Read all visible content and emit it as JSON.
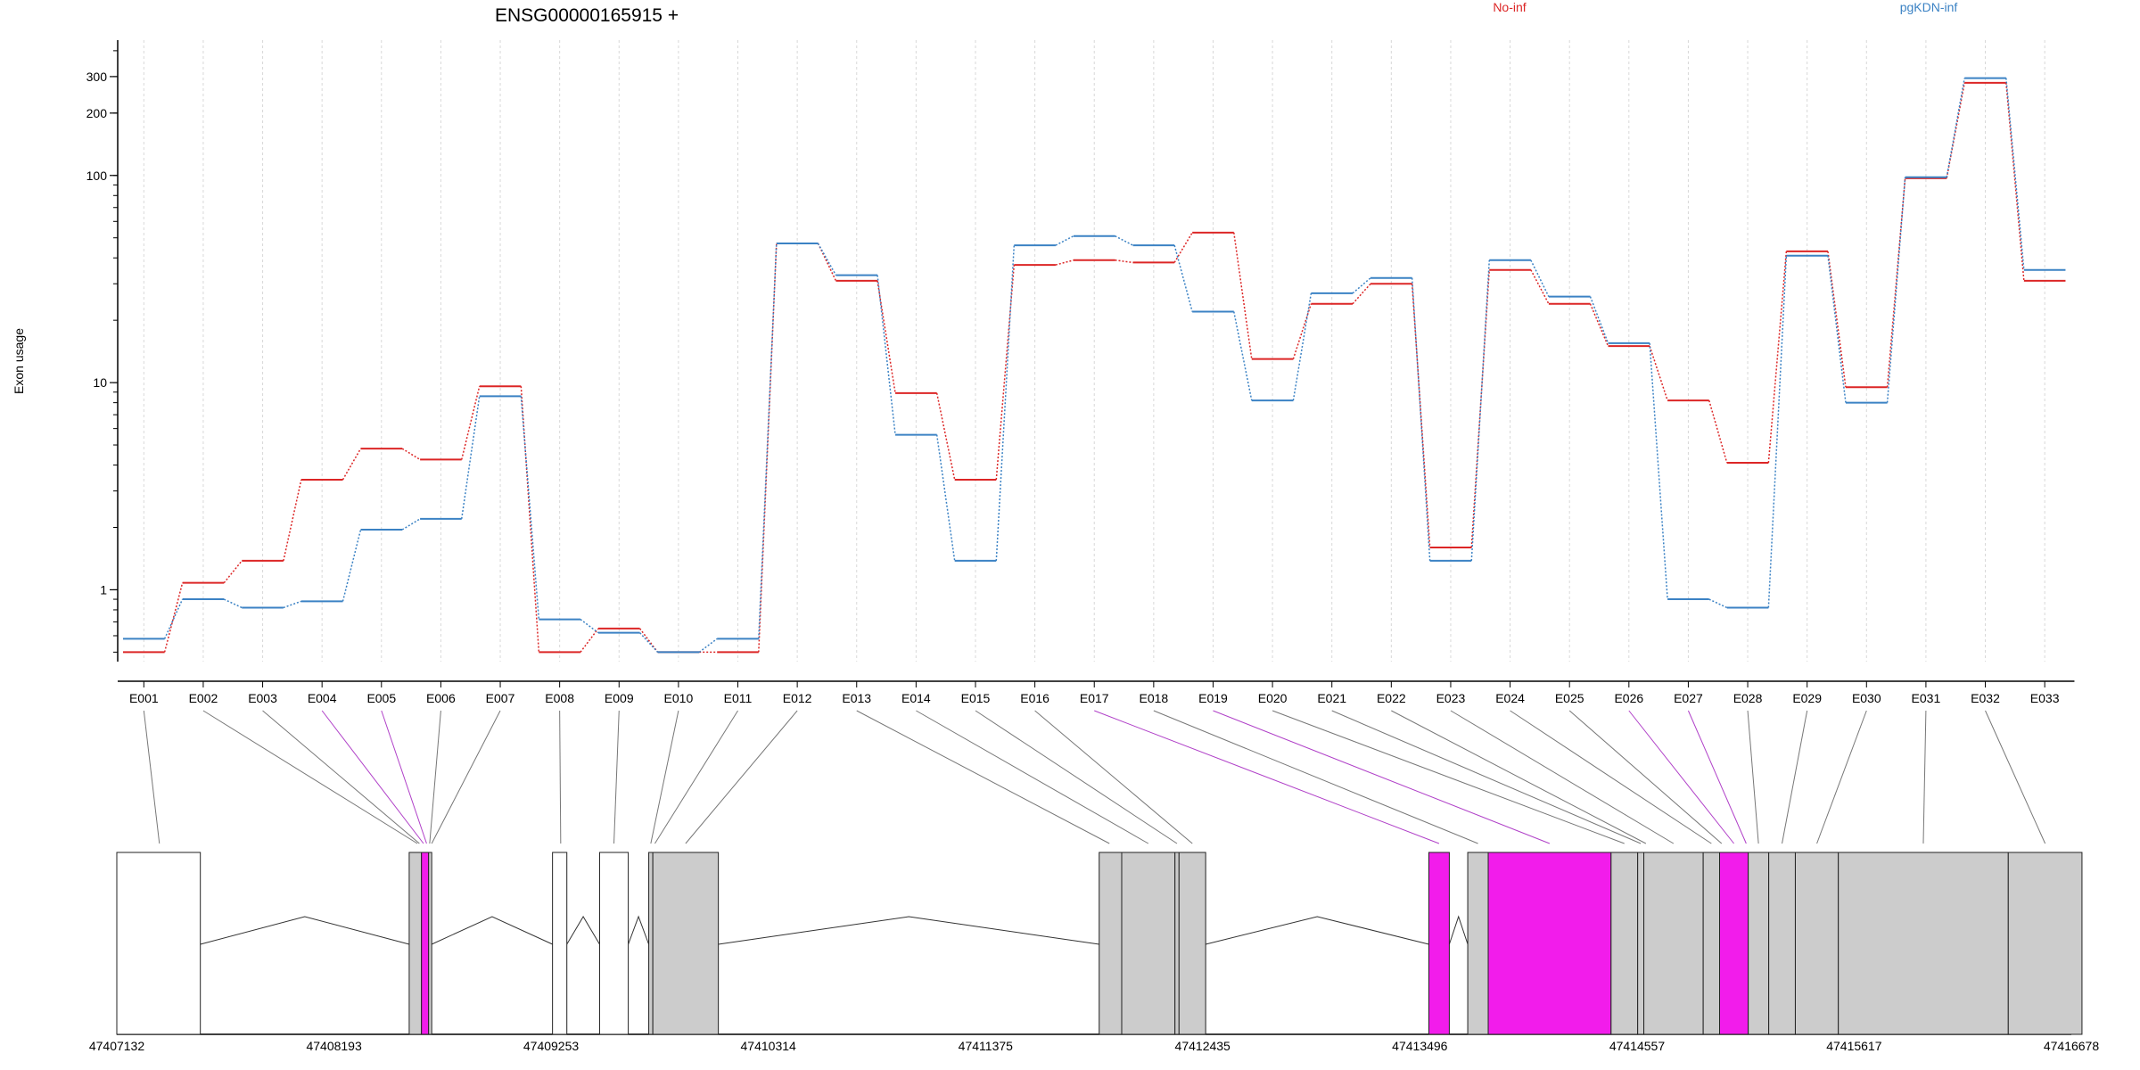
{
  "chart_data": {
    "type": "line",
    "title": "ENSG00000165915 +",
    "ylabel": "Exon usage",
    "y_scale": "log",
    "ylim": [
      0.45,
      450
    ],
    "y_ticks": [
      {
        "value": 1,
        "label": "1"
      },
      {
        "value": 10,
        "label": "10"
      },
      {
        "value": 100,
        "label": "100"
      },
      {
        "value": 200,
        "label": "200"
      },
      {
        "value": 300,
        "label": "300"
      }
    ],
    "categories": [
      "E001",
      "E002",
      "E003",
      "E004",
      "E005",
      "E006",
      "E007",
      "E008",
      "E009",
      "E010",
      "E011",
      "E012",
      "E013",
      "E014",
      "E015",
      "E016",
      "E017",
      "E018",
      "E019",
      "E020",
      "E021",
      "E022",
      "E023",
      "E024",
      "E025",
      "E026",
      "E027",
      "E028",
      "E029",
      "E030",
      "E031",
      "E032",
      "E033"
    ],
    "legend": {
      "placement": "top-right"
    },
    "grid": true,
    "series": [
      {
        "name": "No-inf",
        "color": "#dc2626",
        "values": [
          0.5,
          1.08,
          1.38,
          3.4,
          4.8,
          4.25,
          9.6,
          0.5,
          0.65,
          0.5,
          0.5,
          47,
          31,
          8.9,
          3.4,
          37,
          39,
          38,
          53,
          13,
          24,
          30,
          1.6,
          35,
          24,
          15,
          8.2,
          4.1,
          43,
          9.5,
          97,
          280,
          31
        ]
      },
      {
        "name": "pgKDN-inf",
        "color": "#3b82c4",
        "values": [
          0.58,
          0.9,
          0.82,
          0.88,
          1.95,
          2.2,
          8.6,
          0.72,
          0.62,
          0.5,
          0.58,
          47,
          33,
          5.6,
          1.38,
          46,
          51,
          46,
          22,
          8.2,
          27,
          32,
          1.38,
          39,
          26,
          15.5,
          0.9,
          0.82,
          41,
          8,
          98,
          295,
          35
        ]
      }
    ],
    "gene_model": {
      "x_ticks": [
        "47407132",
        "47408193",
        "47409253",
        "47410314",
        "47411375",
        "47412435",
        "47413496",
        "47414557",
        "47415617",
        "47416678"
      ],
      "highlight_color": "#f21ceb",
      "exon_color": "#cccccc",
      "exons": [
        {
          "start": 47407132,
          "end": 47407540,
          "fill": "white"
        },
        {
          "start": 47408560,
          "end": 47408620,
          "fill": "grey"
        },
        {
          "start": 47408620,
          "end": 47408655,
          "fill": "magenta"
        },
        {
          "start": 47408655,
          "end": 47408670,
          "fill": "grey"
        },
        {
          "start": 47409260,
          "end": 47409330,
          "fill": "white"
        },
        {
          "start": 47409490,
          "end": 47409630,
          "fill": "white"
        },
        {
          "start": 47409730,
          "end": 47409750,
          "fill": "grey"
        },
        {
          "start": 47409750,
          "end": 47410070,
          "fill": "grey"
        },
        {
          "start": 47411930,
          "end": 47412040,
          "fill": "grey"
        },
        {
          "start": 47412040,
          "end": 47412300,
          "fill": "grey"
        },
        {
          "start": 47412300,
          "end": 47412320,
          "fill": "grey"
        },
        {
          "start": 47412320,
          "end": 47412450,
          "fill": "grey"
        },
        {
          "start": 47413540,
          "end": 47413640,
          "fill": "magenta"
        },
        {
          "start": 47413730,
          "end": 47413830,
          "fill": "grey"
        },
        {
          "start": 47413830,
          "end": 47414430,
          "fill": "magenta"
        },
        {
          "start": 47414430,
          "end": 47414560,
          "fill": "grey"
        },
        {
          "start": 47414560,
          "end": 47414590,
          "fill": "grey"
        },
        {
          "start": 47414590,
          "end": 47414880,
          "fill": "grey"
        },
        {
          "start": 47414880,
          "end": 47414960,
          "fill": "grey"
        },
        {
          "start": 47414960,
          "end": 47415100,
          "fill": "magenta"
        },
        {
          "start": 47415100,
          "end": 47415200,
          "fill": "grey"
        },
        {
          "start": 47415200,
          "end": 47415330,
          "fill": "grey"
        },
        {
          "start": 47415330,
          "end": 47415540,
          "fill": "grey"
        },
        {
          "start": 47415540,
          "end": 47416370,
          "fill": "grey"
        },
        {
          "start": 47416370,
          "end": 47416730,
          "fill": "grey"
        }
      ],
      "exon_links": [
        {
          "x": 47407340,
          "color": "grey"
        },
        {
          "x": 47408600,
          "color": "grey"
        },
        {
          "x": 47408610,
          "color": "grey"
        },
        {
          "x": 47408630,
          "color": "magenta"
        },
        {
          "x": 47408645,
          "color": "magenta"
        },
        {
          "x": 47408660,
          "color": "grey"
        },
        {
          "x": 47408670,
          "color": "grey"
        },
        {
          "x": 47409300,
          "color": "grey"
        },
        {
          "x": 47409560,
          "color": "grey"
        },
        {
          "x": 47409740,
          "color": "grey"
        },
        {
          "x": 47409760,
          "color": "grey"
        },
        {
          "x": 47409910,
          "color": "grey"
        },
        {
          "x": 47411980,
          "color": "grey"
        },
        {
          "x": 47412170,
          "color": "grey"
        },
        {
          "x": 47412310,
          "color": "grey"
        },
        {
          "x": 47412385,
          "color": "grey"
        },
        {
          "x": 47413590,
          "color": "magenta"
        },
        {
          "x": 47413780,
          "color": "grey"
        },
        {
          "x": 47414130,
          "color": "magenta"
        },
        {
          "x": 47414495,
          "color": "grey"
        },
        {
          "x": 47414575,
          "color": "grey"
        },
        {
          "x": 47414600,
          "color": "grey"
        },
        {
          "x": 47414735,
          "color": "grey"
        },
        {
          "x": 47414920,
          "color": "grey"
        },
        {
          "x": 47414970,
          "color": "grey"
        },
        {
          "x": 47415030,
          "color": "magenta"
        },
        {
          "x": 47415090,
          "color": "magenta"
        },
        {
          "x": 47415150,
          "color": "grey"
        },
        {
          "x": 47415265,
          "color": "grey"
        },
        {
          "x": 47415435,
          "color": "grey"
        },
        {
          "x": 47415955,
          "color": "grey"
        },
        {
          "x": 47416550,
          "color": "grey"
        }
      ]
    }
  }
}
